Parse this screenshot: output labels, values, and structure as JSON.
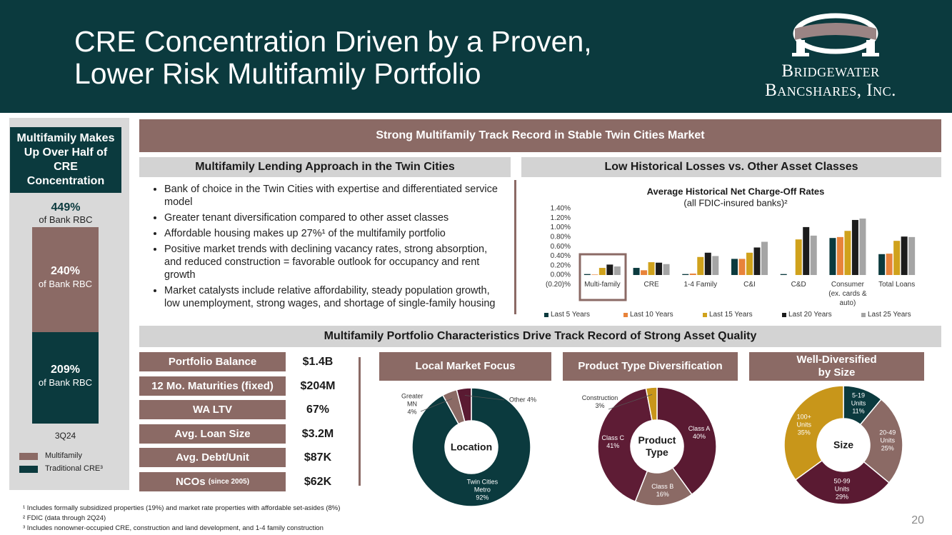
{
  "header": {
    "title_lines": [
      "CRE Concentration Driven by a Proven,",
      "Lower Risk Multifamily Portfolio"
    ],
    "logo_lines": [
      "Bridgewater",
      "Bancshares, Inc."
    ]
  },
  "sidebar": {
    "title": "Multifamily Makes Up Over Half of CRE Concentration"
  },
  "sections": {
    "main": "Strong Multifamily Track Record in Stable Twin Cities Market",
    "approach": "Multifamily Lending Approach in the Twin Cities",
    "losses": "Low Historical Losses vs. Other Asset Classes",
    "characteristics": "Multifamily Portfolio Characteristics Drive Track Record of Strong Asset Quality"
  },
  "bullets": [
    "Bank of choice in the Twin Cities with expertise and differentiated service model",
    "Greater tenant diversification compared to other asset classes",
    "Affordable housing makes up 27%¹ of the multifamily portfolio",
    "Positive market trends with declining vacancy rates, strong absorption, and reduced construction = favorable outlook for occupancy and rent growth",
    "Market catalysts include relative affordability, steady population growth, low unemployment, strong wages, and shortage of single-family housing"
  ],
  "metrics": [
    {
      "label": "Portfolio Balance",
      "value": "$1.4B"
    },
    {
      "label": "12 Mo. Maturities (fixed)",
      "value": "$204M"
    },
    {
      "label": "WA LTV",
      "value": "67%"
    },
    {
      "label": "Avg. Loan Size",
      "value": "$3.2M"
    },
    {
      "label": "Avg. Debt/Unit",
      "value": "$87K"
    },
    {
      "label": "NCOs",
      "qualifier": "(since 2005)",
      "value": "$62K"
    }
  ],
  "chart_data": [
    {
      "type": "stacked_bar",
      "categories": [
        "3Q24"
      ],
      "total": 449,
      "total_label": "449%",
      "unit_label": "of Bank RBC",
      "series": [
        {
          "name": "Multifamily",
          "color": "#8b6a65",
          "values": [
            240
          ],
          "value_labels": [
            "240%"
          ]
        },
        {
          "name": "Traditional CRE³",
          "color": "#0b3a3e",
          "values": [
            209
          ],
          "value_labels": [
            "209%"
          ]
        }
      ]
    },
    {
      "type": "bar",
      "title": "Average Historical Net Charge-Off Rates",
      "subtitle": "(all FDIC-insured banks)²",
      "categories": [
        "Multi-family",
        "CRE",
        "1-4 Family",
        "C&I",
        "C&D",
        "Consumer (ex. cards & auto)",
        "Total Loans"
      ],
      "series": [
        {
          "name": "Last 5 Years",
          "color": "#0b3a3e",
          "values": [
            0.02,
            0.15,
            0.02,
            0.34,
            0.02,
            0.78,
            0.44
          ]
        },
        {
          "name": "Last 10 Years",
          "color": "#e8833a",
          "values": [
            0.01,
            0.1,
            0.03,
            0.34,
            0.0,
            0.8,
            0.45
          ]
        },
        {
          "name": "Last 15 Years",
          "color": "#d0a21c",
          "values": [
            0.15,
            0.27,
            0.38,
            0.47,
            0.75,
            0.93,
            0.72
          ]
        },
        {
          "name": "Last 20 Years",
          "color": "#1c1c1c",
          "values": [
            0.22,
            0.26,
            0.47,
            0.58,
            1.01,
            1.16,
            0.81
          ]
        },
        {
          "name": "Last 25 Years",
          "color": "#a5a5a5",
          "values": [
            0.18,
            0.23,
            0.4,
            0.7,
            0.83,
            1.19,
            0.8
          ]
        }
      ],
      "ylim": [
        -0.2,
        1.4
      ],
      "yticks": [
        {
          "value": -0.2,
          "label": "(0.20)%"
        },
        {
          "value": 0,
          "label": "0.00%"
        },
        {
          "value": 0.2,
          "label": "0.20%"
        },
        {
          "value": 0.4,
          "label": "0.40%"
        },
        {
          "value": 0.6,
          "label": "0.60%"
        },
        {
          "value": 0.8,
          "label": "0.80%"
        },
        {
          "value": 1.0,
          "label": "1.00%"
        },
        {
          "value": 1.2,
          "label": "1.20%"
        },
        {
          "value": 1.4,
          "label": "1.40%"
        }
      ],
      "grid": false,
      "legend": "bottom"
    },
    {
      "type": "donut",
      "title": "Local Market Focus",
      "center_label": "Location",
      "categories": [
        "Twin Cities Metro",
        "Greater MN",
        "Other"
      ],
      "values": [
        92,
        4,
        4
      ],
      "value_labels": [
        "92%",
        "4%",
        "4%"
      ],
      "colors": [
        "#0b3a3e",
        "#8b6a65",
        "#5a1a32"
      ]
    },
    {
      "type": "donut",
      "title": "Product Type Diversification",
      "center_label": "Product Type",
      "categories": [
        "Class A",
        "Class B",
        "Class C",
        "Construction"
      ],
      "values": [
        40,
        16,
        41,
        3
      ],
      "value_labels": [
        "40%",
        "16%",
        "41%",
        "3%"
      ],
      "colors": [
        "#5a1a32",
        "#8b6a65",
        "#5e1c35",
        "#c8961a"
      ]
    },
    {
      "type": "donut",
      "title": "Well-Diversified by Size",
      "center_label": "Size",
      "categories": [
        "5-19 Units",
        "20-49 Units",
        "50-99 Units",
        "100+ Units"
      ],
      "values": [
        11,
        25,
        29,
        35
      ],
      "value_labels": [
        "11%",
        "25%",
        "29%",
        "35%"
      ],
      "colors": [
        "#0b3a3e",
        "#8b6a65",
        "#5a1a32",
        "#c8961a"
      ]
    }
  ],
  "footnotes": [
    "¹ Includes formally subsidized properties (19%) and market rate properties with affordable set-asides (8%)",
    "² FDIC (data through 2Q24)",
    "³ Includes nonowner-occupied CRE, construction and land development, and 1-4 family construction"
  ],
  "page_number": "20"
}
